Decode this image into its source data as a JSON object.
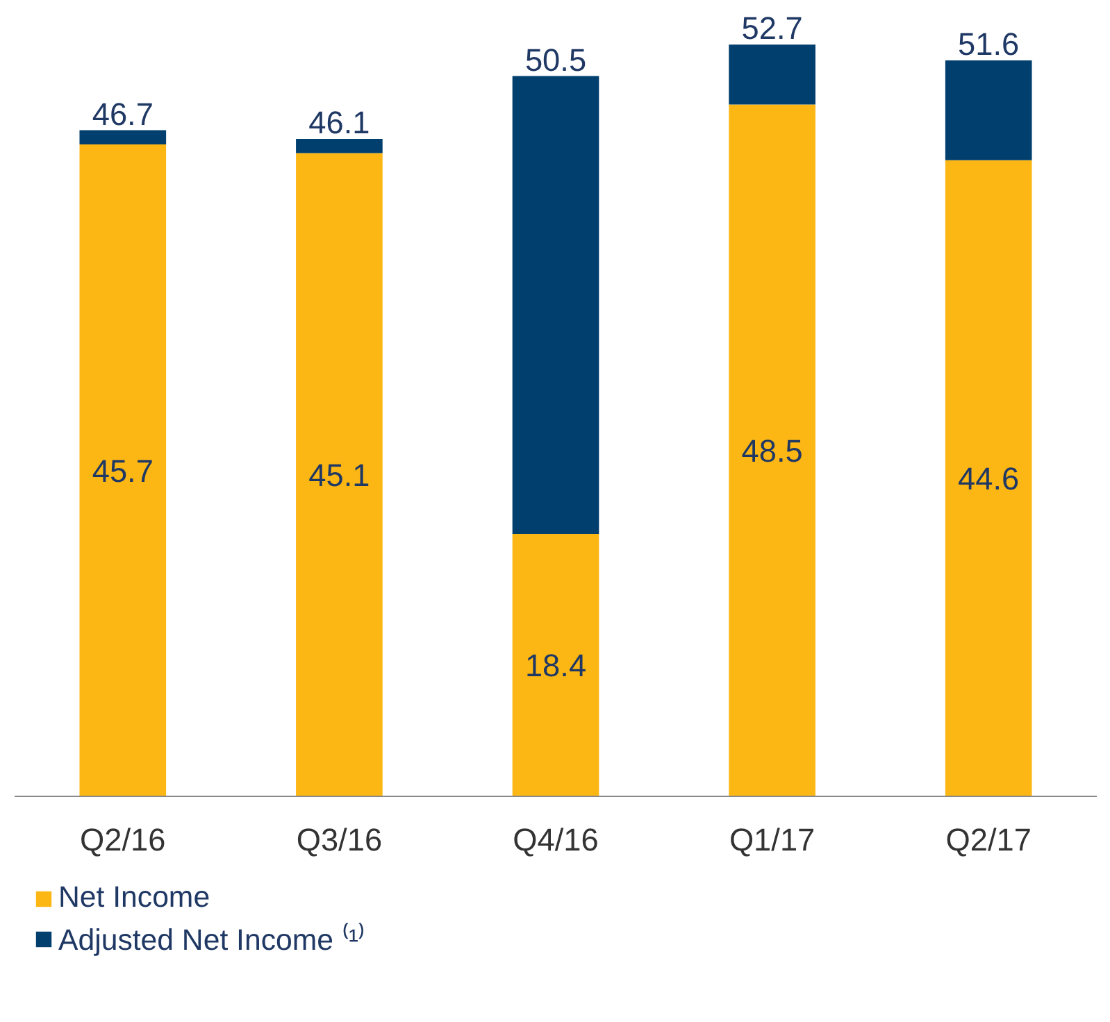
{
  "chart_data": {
    "type": "bar",
    "stacked": true,
    "categories": [
      "Q2/16",
      "Q3/16",
      "Q4/16",
      "Q1/17",
      "Q2/17"
    ],
    "series": [
      {
        "name": "Net Income",
        "color": "#fdb714",
        "values": [
          45.7,
          45.1,
          18.4,
          48.5,
          44.6
        ],
        "value_labels": [
          "45.7",
          "45.1",
          "18.4",
          "48.5",
          "44.6"
        ]
      },
      {
        "name": "Adjusted Net Income ⁽¹⁾",
        "color": "#003f6e",
        "values": [
          1.0,
          1.0,
          32.1,
          4.2,
          7.0
        ]
      }
    ],
    "totals": [
      "46.7",
      "46.1",
      "50.5",
      "52.7",
      "51.6"
    ],
    "legend": "bottom left"
  }
}
